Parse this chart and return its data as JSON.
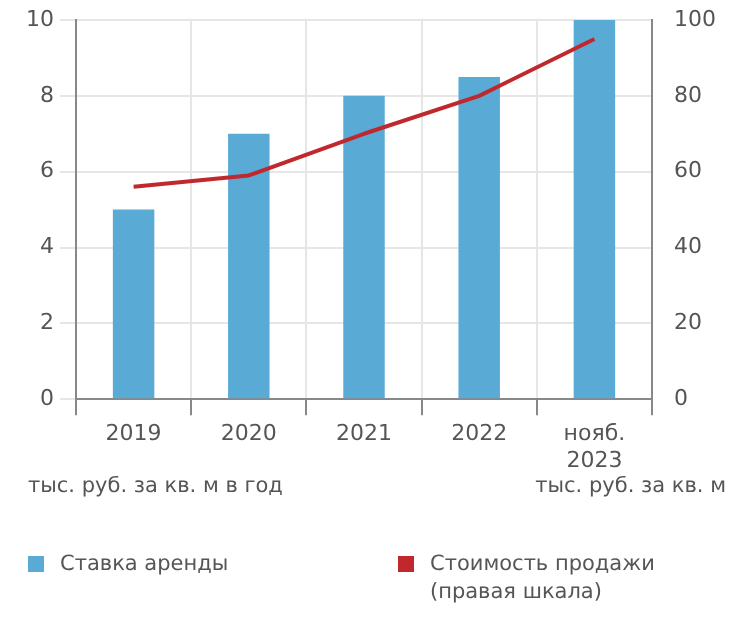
{
  "chart_data": {
    "type": "bar",
    "categories": [
      "2019",
      "2020",
      "2021",
      "2022",
      "нояб.\n2023"
    ],
    "series": [
      {
        "name": "Ставка аренды",
        "type": "bar",
        "color": "#5aaad6",
        "values": [
          5,
          7,
          8,
          8.5,
          10
        ]
      },
      {
        "name": "Стоимость продажи\n(правая шкала)",
        "type": "line",
        "axis": "y2",
        "color": "#c0282d",
        "values": [
          56,
          59,
          70,
          80,
          95
        ]
      }
    ],
    "ylabel": "тыс. руб. за кв. м в год",
    "annotations": [
      "тыс. руб. за кв. м"
    ],
    "ylim": [
      0,
      10
    ],
    "yticks": [
      0,
      2,
      4,
      6,
      8,
      10
    ],
    "y2lim": [
      0,
      100
    ],
    "y2ticks": [
      0,
      20,
      40,
      60,
      80,
      100
    ],
    "grid": true,
    "legend": "bottom",
    "marker": "none",
    "line_style": "solid"
  }
}
